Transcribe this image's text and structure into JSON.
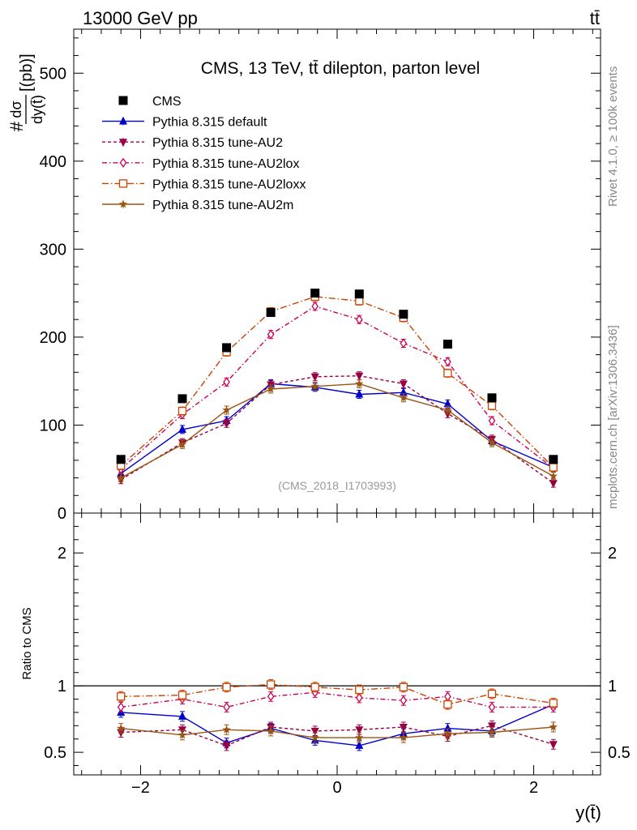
{
  "header": {
    "energy_label": "13000 GeV pp",
    "process_label": "tt̄"
  },
  "side_text": {
    "rivet": "Rivet 4.1.0, ≥ 100k events",
    "mcplots": "mcplots.cern.ch [arXiv:1306.3436]"
  },
  "chart_data": {
    "type": "line",
    "title": "CMS, 13 TeV, tt̄ dilepton, parton level",
    "analysis_id": "(CMS_2018_I1703993)",
    "xlabel": "y(t̄)",
    "ylabel": {
      "hash": "#",
      "numerator": "dσ",
      "denominator": "dy(t̄)",
      "units": "[(pb)]"
    },
    "ratio_ylabel": "Ratio to CMS",
    "xlim": [
      -2.68,
      2.68
    ],
    "ylim": [
      0,
      550
    ],
    "ratio_ylim": [
      0.33,
      2.3
    ],
    "x_ticks": [
      {
        "v": -2,
        "label": "−2"
      },
      {
        "v": 0,
        "label": "0"
      },
      {
        "v": 2,
        "label": "2"
      }
    ],
    "y_ticks": [
      {
        "v": 0,
        "label": "0"
      },
      {
        "v": 100,
        "label": "100"
      },
      {
        "v": 200,
        "label": "200"
      },
      {
        "v": 300,
        "label": "300"
      },
      {
        "v": 400,
        "label": "400"
      },
      {
        "v": 500,
        "label": "500"
      }
    ],
    "ratio_ticks": [
      {
        "v": 0.5,
        "label": "0.5"
      },
      {
        "v": 1,
        "label": "1"
      },
      {
        "v": 2,
        "label": "2"
      }
    ],
    "x": [
      -2.2,
      -1.575,
      -1.125,
      -0.675,
      -0.225,
      0.225,
      0.675,
      1.125,
      1.575,
      2.2
    ],
    "data": {
      "name": "CMS",
      "values": [
        61,
        130,
        188,
        228,
        250,
        249,
        226,
        192,
        131,
        61
      ]
    },
    "series": [
      {
        "name": "Pythia 8.315 default",
        "color": "#0000cc",
        "marker": "triangle-up",
        "dash": "",
        "values": [
          45,
          95,
          105,
          147,
          143,
          135,
          137,
          124,
          82,
          52
        ],
        "ratio": [
          0.8,
          0.77,
          0.57,
          0.68,
          0.59,
          0.55,
          0.64,
          0.68,
          0.66,
          0.86
        ]
      },
      {
        "name": "Pythia 8.315 tune-AU2",
        "color": "#990044",
        "marker": "triangle-down",
        "dash": "4,3",
        "values": [
          38,
          80,
          102,
          146,
          155,
          156,
          147,
          113,
          84,
          34
        ],
        "ratio": [
          0.65,
          0.67,
          0.55,
          0.69,
          0.66,
          0.67,
          0.69,
          0.62,
          0.7,
          0.56
        ]
      },
      {
        "name": "Pythia 8.315 tune-AU2lox",
        "color": "#cc0055",
        "marker": "diamond-open",
        "dash": "6,3,1.5,3",
        "values": [
          50,
          112,
          149,
          203,
          235,
          220,
          193,
          172,
          105,
          51
        ],
        "ratio": [
          0.84,
          0.9,
          0.84,
          0.92,
          0.95,
          0.91,
          0.89,
          0.92,
          0.84,
          0.84
        ]
      },
      {
        "name": "Pythia 8.315 tune-AU2loxx",
        "color": "#cc4400",
        "marker": "square-open",
        "dash": "8,3,1.5,3",
        "values": [
          54,
          116,
          183,
          229,
          246,
          241,
          222,
          159,
          122,
          52
        ],
        "ratio": [
          0.92,
          0.93,
          0.99,
          1.01,
          0.99,
          0.97,
          0.99,
          0.86,
          0.94,
          0.87
        ]
      },
      {
        "name": "Pythia 8.315 tune-AU2m",
        "color": "#995511",
        "marker": "star",
        "dash": "",
        "values": [
          40,
          78,
          117,
          141,
          144,
          147,
          131,
          117,
          80,
          42
        ],
        "ratio": [
          0.68,
          0.63,
          0.67,
          0.66,
          0.61,
          0.61,
          0.61,
          0.64,
          0.65,
          0.69
        ]
      }
    ]
  }
}
